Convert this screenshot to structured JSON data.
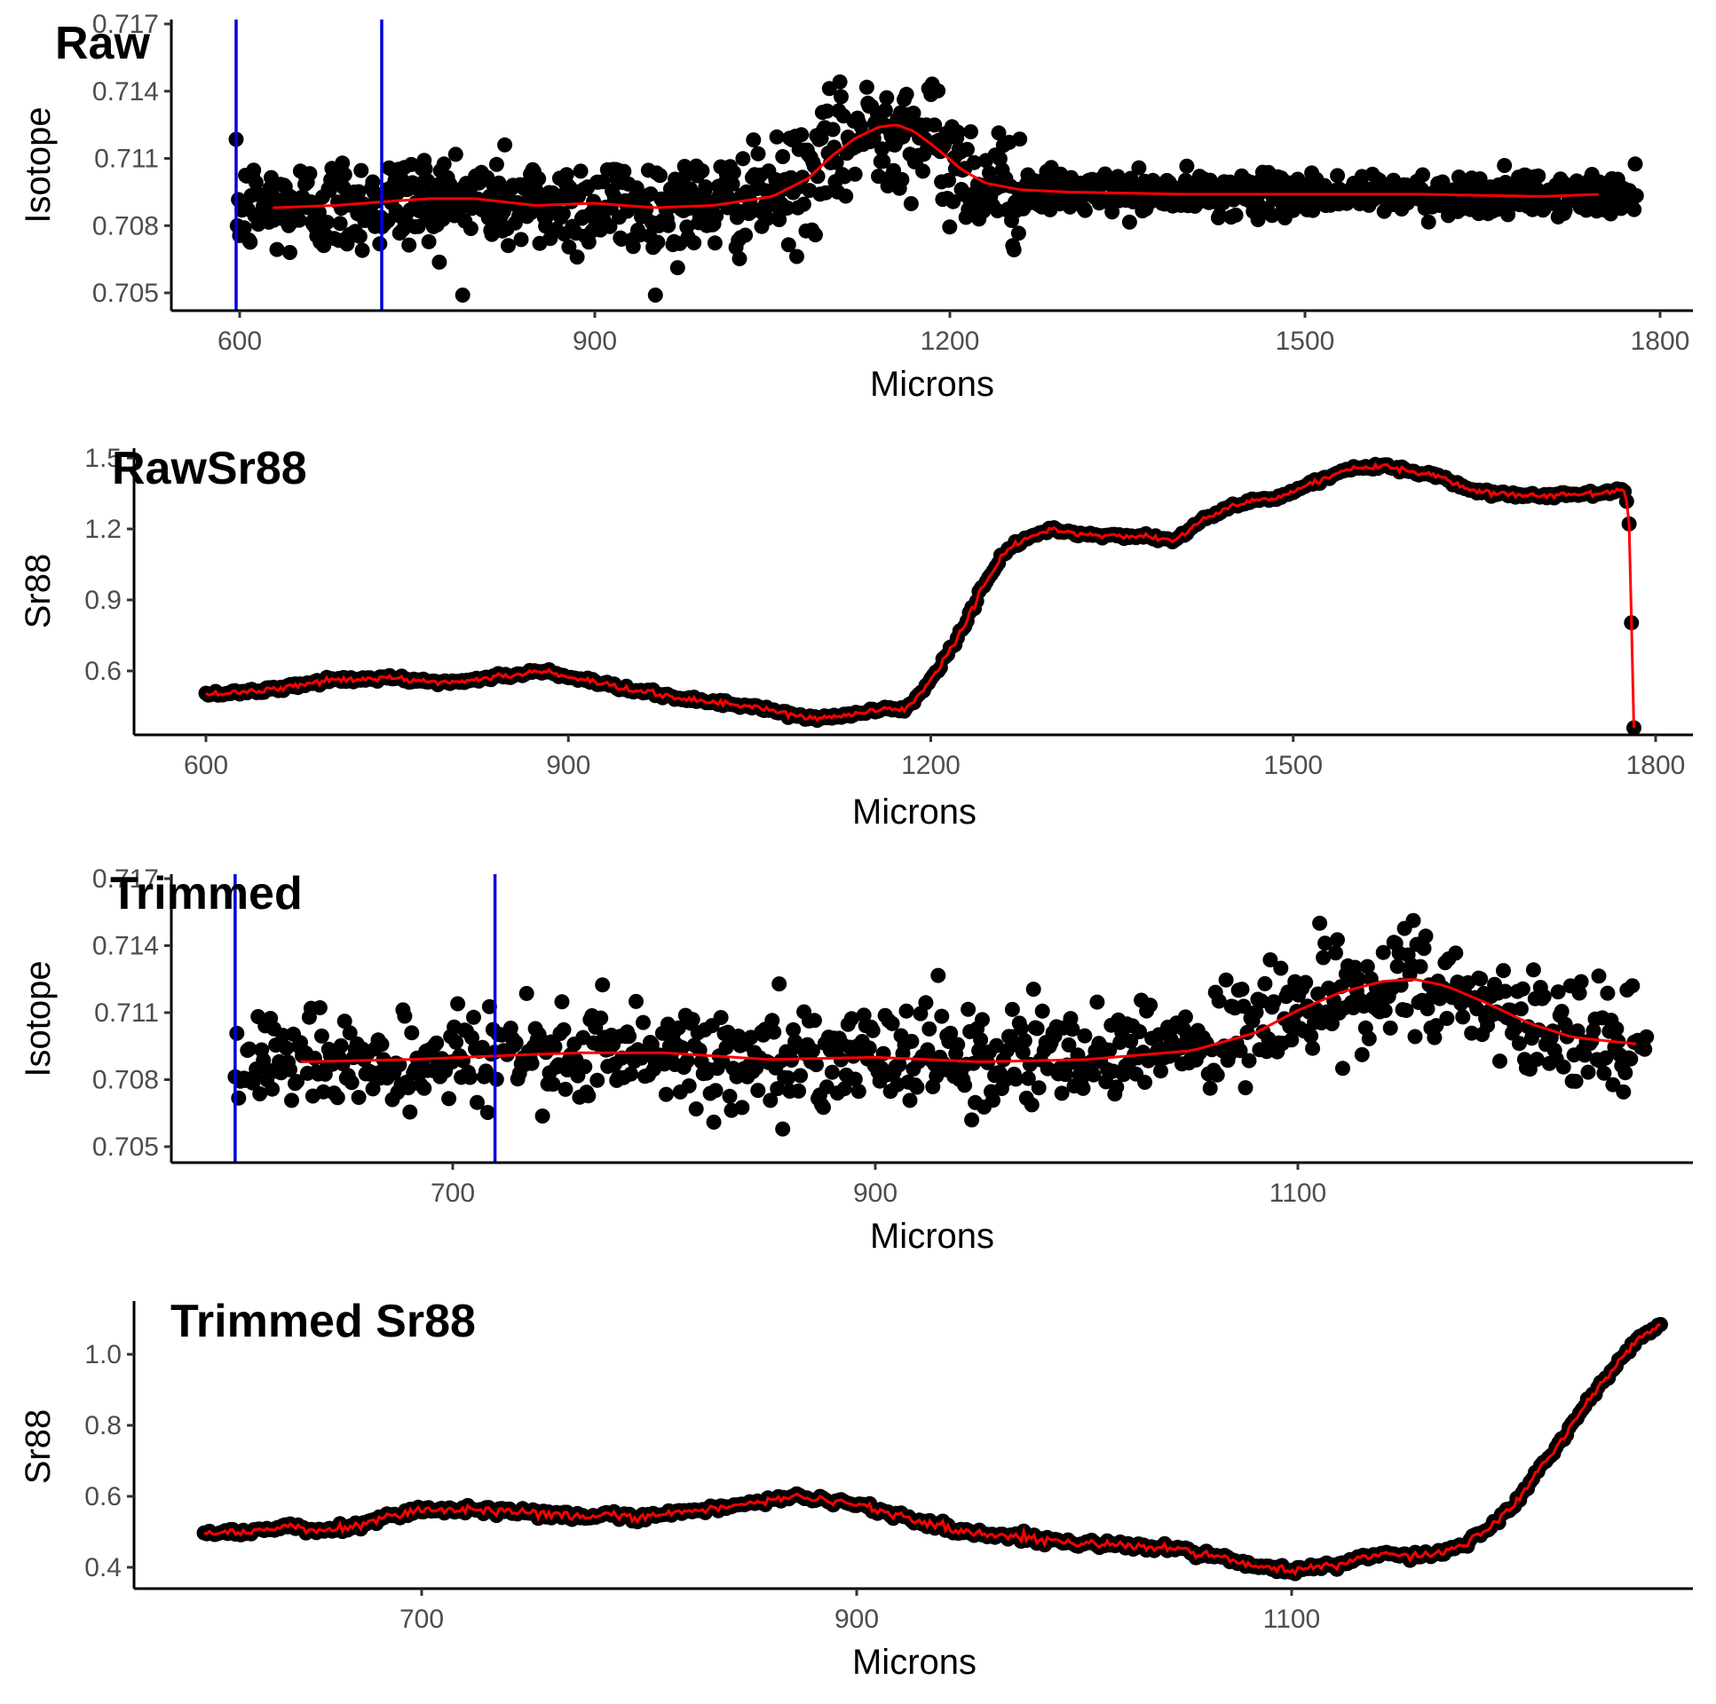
{
  "colors": {
    "points": "#000000",
    "trend": "#ff0000",
    "markers": "#0000dd",
    "axis": "#000000"
  },
  "chart_data": [
    {
      "id": "raw",
      "type": "scatter",
      "title": "Raw",
      "xlabel": "Microns",
      "ylabel": "Isotope",
      "xlim": [
        575,
        1810
      ],
      "ylim": [
        0.7045,
        0.7173
      ],
      "xticks": [
        600,
        900,
        1200,
        1500,
        1800
      ],
      "yticks": [
        0.705,
        0.708,
        0.711,
        0.714,
        0.717
      ],
      "ytick_labels": [
        "0.705",
        "0.708",
        "0.711",
        "0.714",
        "0.717"
      ],
      "vlines": [
        597,
        720
      ],
      "point_x_range": [
        597,
        1780
      ],
      "point_count": 1200,
      "trend": {
        "x": [
          628,
          680,
          730,
          760,
          800,
          850,
          900,
          950,
          1000,
          1050,
          1080,
          1100,
          1120,
          1140,
          1155,
          1170,
          1190,
          1210,
          1230,
          1260,
          1300,
          1400,
          1500,
          1600,
          1700,
          1750
        ],
        "y": [
          0.7088,
          0.7089,
          0.7091,
          0.7092,
          0.7092,
          0.7089,
          0.709,
          0.7088,
          0.7089,
          0.7093,
          0.7101,
          0.7111,
          0.7119,
          0.7124,
          0.7125,
          0.7122,
          0.7114,
          0.7105,
          0.7099,
          0.7096,
          0.7095,
          0.7094,
          0.7094,
          0.7094,
          0.7093,
          0.7094
        ]
      }
    },
    {
      "id": "rawsr88",
      "type": "line",
      "title": "RawSr88",
      "xlabel": "Microns",
      "ylabel": "Sr88",
      "xlim": [
        575,
        1810
      ],
      "ylim": [
        0.33,
        1.52
      ],
      "xticks": [
        600,
        900,
        1200,
        1500,
        1800
      ],
      "yticks": [
        0.6,
        0.9,
        1.2,
        1.5
      ],
      "ytick_labels": [
        "0.6",
        "0.9",
        "1.2",
        "1.5"
      ],
      "series": [
        {
          "x": [
            600,
            650,
            700,
            750,
            800,
            850,
            880,
            900,
            950,
            1000,
            1050,
            1080,
            1100,
            1130,
            1160,
            1180,
            1200,
            1220,
            1240,
            1260,
            1280,
            1300,
            1320,
            1350,
            1380,
            1400,
            1420,
            1450,
            1480,
            1500,
            1520,
            1550,
            1580,
            1600,
            1620,
            1650,
            1700,
            1750,
            1775,
            1778,
            1780,
            1782
          ],
          "y": [
            0.5,
            0.52,
            0.56,
            0.57,
            0.55,
            0.58,
            0.6,
            0.57,
            0.52,
            0.48,
            0.45,
            0.42,
            0.4,
            0.41,
            0.44,
            0.44,
            0.56,
            0.72,
            0.92,
            1.1,
            1.16,
            1.2,
            1.18,
            1.17,
            1.17,
            1.15,
            1.22,
            1.3,
            1.33,
            1.36,
            1.4,
            1.46,
            1.46,
            1.44,
            1.42,
            1.36,
            1.34,
            1.35,
            1.37,
            1.22,
            0.8,
            0.35
          ]
        }
      ]
    },
    {
      "id": "trimmed",
      "type": "scatter",
      "title": "Trimmed",
      "xlabel": "Microns",
      "ylabel": "Isotope",
      "xlim": [
        585,
        1290
      ],
      "ylim": [
        0.7045,
        0.7173
      ],
      "xticks": [
        700,
        900,
        1100
      ],
      "yticks": [
        0.705,
        0.708,
        0.711,
        0.714,
        0.717
      ],
      "ytick_labels": [
        "0.705",
        "0.708",
        "0.711",
        "0.714",
        "0.717"
      ],
      "vlines": [
        597,
        720
      ],
      "point_x_range": [
        597,
        1265
      ],
      "point_count": 800,
      "trend": {
        "x": [
          628,
          680,
          730,
          760,
          800,
          850,
          900,
          950,
          1000,
          1050,
          1080,
          1100,
          1120,
          1140,
          1155,
          1170,
          1190,
          1210,
          1230,
          1260
        ],
        "y": [
          0.7088,
          0.7089,
          0.7091,
          0.7092,
          0.7092,
          0.7089,
          0.709,
          0.7088,
          0.7089,
          0.7093,
          0.7101,
          0.7111,
          0.7119,
          0.7124,
          0.7125,
          0.7122,
          0.7114,
          0.7105,
          0.7099,
          0.7096
        ]
      }
    },
    {
      "id": "trimmedsr88",
      "type": "line",
      "title": "Trimmed Sr88",
      "xlabel": "Microns",
      "ylabel": "Sr88",
      "xlim": [
        568,
        1298
      ],
      "ylim": [
        0.36,
        1.14
      ],
      "xticks": [
        700,
        900,
        1100
      ],
      "yticks": [
        0.4,
        0.6,
        0.8,
        1.0
      ],
      "ytick_labels": [
        "0.4",
        "0.6",
        "0.8",
        "1.0"
      ],
      "series": [
        {
          "x": [
            600,
            620,
            640,
            655,
            670,
            690,
            700,
            730,
            760,
            800,
            830,
            850,
            870,
            890,
            910,
            950,
            1000,
            1050,
            1080,
            1100,
            1120,
            1140,
            1160,
            1180,
            1200,
            1220,
            1240,
            1260,
            1270
          ],
          "y": [
            0.5,
            0.5,
            0.52,
            0.5,
            0.52,
            0.55,
            0.56,
            0.56,
            0.55,
            0.54,
            0.56,
            0.58,
            0.6,
            0.59,
            0.56,
            0.5,
            0.47,
            0.45,
            0.41,
            0.39,
            0.41,
            0.44,
            0.43,
            0.46,
            0.56,
            0.72,
            0.9,
            1.05,
            1.08
          ]
        }
      ]
    }
  ]
}
